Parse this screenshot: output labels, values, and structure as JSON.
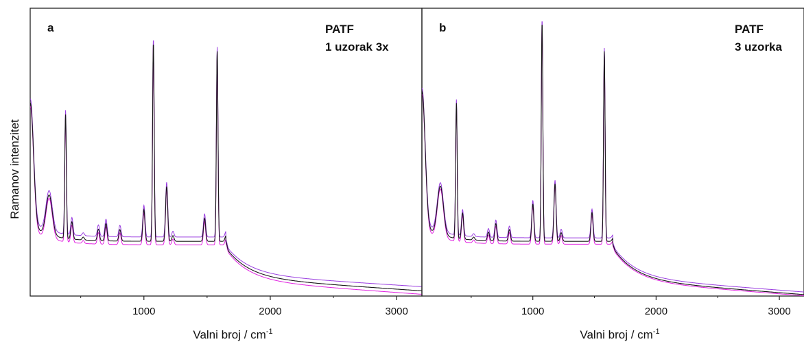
{
  "chart_data": [
    {
      "type": "line",
      "panel_label": "a",
      "annotation": [
        "PATF",
        "1 uzorak 3x"
      ],
      "xlabel_text": "Valni broj / cm",
      "xlabel_sup": "-1",
      "ylabel": "Ramanov intenzitet",
      "xlim": [
        100,
        3200
      ],
      "ylim": [
        0,
        1
      ],
      "x_ticks": [
        1000,
        2000,
        3000
      ],
      "colors": [
        "#9a3de0",
        "#e020e0",
        "#1a1a1a"
      ],
      "peaks": [
        {
          "x": 102,
          "h": 0.62
        },
        {
          "x": 250,
          "h": 0.33
        },
        {
          "x": 380,
          "h": 0.62
        },
        {
          "x": 430,
          "h": 0.25
        },
        {
          "x": 520,
          "h": 0.2
        },
        {
          "x": 640,
          "h": 0.23
        },
        {
          "x": 700,
          "h": 0.25
        },
        {
          "x": 760,
          "h": 0.19
        },
        {
          "x": 810,
          "h": 0.23
        },
        {
          "x": 1000,
          "h": 0.3
        },
        {
          "x": 1075,
          "h": 0.88
        },
        {
          "x": 1180,
          "h": 0.38
        },
        {
          "x": 1230,
          "h": 0.21
        },
        {
          "x": 1480,
          "h": 0.27
        },
        {
          "x": 1580,
          "h": 0.85
        },
        {
          "x": 1650,
          "h": 0.21
        }
      ],
      "tail_end": [
        0.025,
        0.012,
        0.018
      ]
    },
    {
      "type": "line",
      "panel_label": "b",
      "annotation": [
        "PATF",
        "3 uzorka"
      ],
      "xlabel_text": "Valni broj / cm",
      "xlabel_sup": "-1",
      "ylabel": "",
      "xlim": [
        100,
        3200
      ],
      "ylim": [
        0,
        1
      ],
      "x_ticks": [
        1000,
        2000,
        3000
      ],
      "colors": [
        "#9a3de0",
        "#e020e0",
        "#1a1a1a"
      ],
      "peaks": [
        {
          "x": 102,
          "h": 0.66
        },
        {
          "x": 250,
          "h": 0.36
        },
        {
          "x": 380,
          "h": 0.66
        },
        {
          "x": 430,
          "h": 0.28
        },
        {
          "x": 520,
          "h": 0.2
        },
        {
          "x": 640,
          "h": 0.22
        },
        {
          "x": 700,
          "h": 0.25
        },
        {
          "x": 760,
          "h": 0.19
        },
        {
          "x": 810,
          "h": 0.23
        },
        {
          "x": 1000,
          "h": 0.32
        },
        {
          "x": 1075,
          "h": 0.95
        },
        {
          "x": 1180,
          "h": 0.39
        },
        {
          "x": 1230,
          "h": 0.22
        },
        {
          "x": 1480,
          "h": 0.29
        },
        {
          "x": 1580,
          "h": 0.85
        },
        {
          "x": 1650,
          "h": 0.2
        }
      ],
      "tail_end": [
        0.008,
        0.006,
        0.005
      ]
    }
  ]
}
